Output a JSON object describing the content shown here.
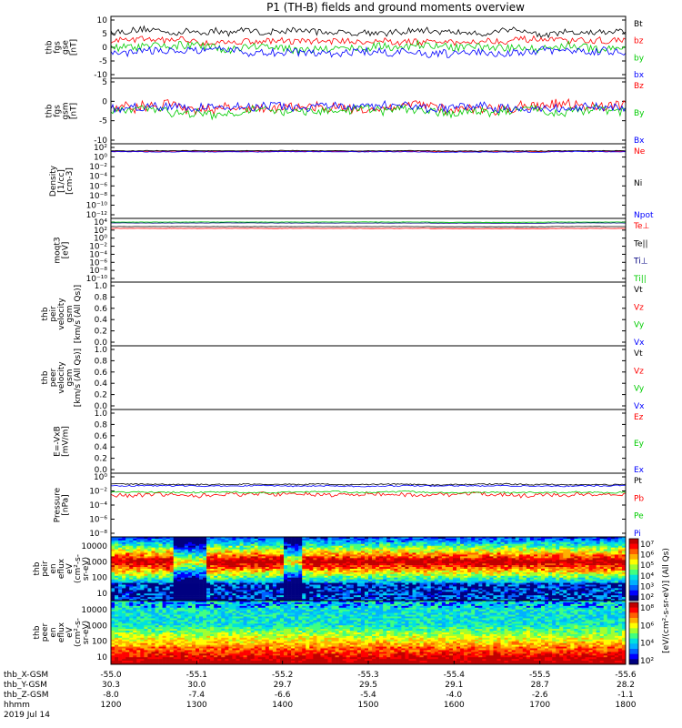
{
  "title": "P1 (TH-B) fields and ground moments overview",
  "date_label": "2019 Jul 14",
  "colors": {
    "black": "#000000",
    "red": "#ff0000",
    "green": "#00cc00",
    "blue": "#0000ff",
    "darkred": "#aa0000",
    "navy": "#000080"
  },
  "chart_data": [
    {
      "type": "line",
      "id": "fgs_gse",
      "ylabel": [
        "thb",
        "fgs",
        "gse",
        "[nT]"
      ],
      "ylim": [
        -10,
        10
      ],
      "yticks": [
        "10",
        "5",
        "0",
        "-5",
        "-10"
      ],
      "log": false,
      "series": [
        {
          "name": "Bt",
          "color": "black",
          "base": 5,
          "noise": 2
        },
        {
          "name": "bz",
          "color": "red",
          "base": 2,
          "noise": 2
        },
        {
          "name": "by",
          "color": "green",
          "base": 0,
          "noise": 2.5
        },
        {
          "name": "bx",
          "color": "blue",
          "base": -1.5,
          "noise": 2.5
        }
      ]
    },
    {
      "type": "line",
      "id": "fgs_gsm",
      "ylabel": [
        "thb",
        "fgs",
        "gsm",
        "[nT]"
      ],
      "ylim": [
        -10,
        10
      ],
      "yticks": [
        "5",
        "0",
        "-5",
        "-10"
      ],
      "log": false,
      "series": [
        {
          "name": "Bz",
          "color": "red",
          "base": 1,
          "noise": 3
        },
        {
          "name": "By",
          "color": "green",
          "base": 0,
          "noise": 2.5
        },
        {
          "name": "Bx",
          "color": "blue",
          "base": 1,
          "noise": 2.5
        }
      ]
    },
    {
      "type": "line",
      "id": "density",
      "ylabel": [
        "Density",
        "[1/cc]",
        "[cm-3]"
      ],
      "ylim": [
        -12,
        2
      ],
      "log": true,
      "yticks": [
        "10²",
        "10⁰",
        "10⁻²",
        "10⁻⁴",
        "10⁻⁶",
        "10⁻⁸",
        "10⁻¹⁰",
        "10⁻¹²"
      ],
      "series": [
        {
          "name": "Ne",
          "color": "red",
          "base": 0.6,
          "noise": 0.1
        },
        {
          "name": "Ni",
          "color": "black",
          "base": 0.7,
          "noise": 0.1
        },
        {
          "name": "Npot",
          "color": "blue",
          "base": 0.5,
          "noise": 0.1
        }
      ]
    },
    {
      "type": "line",
      "id": "temp",
      "ylabel": [
        "moqt3",
        "[eV]"
      ],
      "ylim": [
        -10,
        4
      ],
      "log": true,
      "yticks": [
        "10⁴",
        "10²",
        "10⁰",
        "10⁻²",
        "10⁻⁴",
        "10⁻⁶",
        "10⁻⁸",
        "10⁻¹⁰"
      ],
      "series": [
        {
          "name": "Te⊥",
          "color": "red",
          "base": 1.8,
          "noise": 0.05
        },
        {
          "name": "Te||",
          "color": "black",
          "base": 2.2,
          "noise": 0.05
        },
        {
          "name": "Ti⊥",
          "color": "navy",
          "base": 3.0,
          "noise": 0.05
        },
        {
          "name": "Ti||",
          "color": "green",
          "base": 3.2,
          "noise": 0.05
        }
      ]
    },
    {
      "type": "line",
      "id": "peir_vel",
      "ylabel": [
        "thb",
        "peir",
        "velocity",
        "gsm",
        "[km/s (All Qs)]"
      ],
      "ylim": [
        0,
        1
      ],
      "log": false,
      "yticks": [
        "1.0",
        "0.8",
        "0.6",
        "0.4",
        "0.2",
        "0.0"
      ],
      "series": [
        {
          "name": "Vt",
          "color": "black"
        },
        {
          "name": "Vz",
          "color": "red"
        },
        {
          "name": "Vy",
          "color": "green"
        },
        {
          "name": "Vx",
          "color": "blue"
        }
      ]
    },
    {
      "type": "line",
      "id": "peer_vel",
      "ylabel": [
        "thb",
        "peer",
        "velocity",
        "gsm",
        "[km/s (All Qs)]"
      ],
      "ylim": [
        0,
        1
      ],
      "log": false,
      "yticks": [
        "1.0",
        "0.8",
        "0.6",
        "0.4",
        "0.2",
        "0.0"
      ],
      "series": [
        {
          "name": "Vt",
          "color": "black"
        },
        {
          "name": "Vz",
          "color": "red"
        },
        {
          "name": "Vy",
          "color": "green"
        },
        {
          "name": "Vx",
          "color": "blue"
        }
      ]
    },
    {
      "type": "line",
      "id": "efield",
      "ylabel": [
        "E=-VxB",
        "[mV/m]"
      ],
      "ylim": [
        0,
        1
      ],
      "log": false,
      "yticks": [
        "1.0",
        "0.8",
        "0.6",
        "0.4",
        "0.2",
        "0.0"
      ],
      "series": [
        {
          "name": "Ez",
          "color": "red"
        },
        {
          "name": "Ey",
          "color": "green"
        },
        {
          "name": "Ex",
          "color": "blue"
        }
      ]
    },
    {
      "type": "line",
      "id": "pressure",
      "ylabel": [
        "Pressure",
        "[nPa]"
      ],
      "ylim": [
        -8,
        0
      ],
      "log": true,
      "yticks": [
        "10⁰",
        "10⁻²",
        "10⁻⁴",
        "10⁻⁶",
        "10⁻⁸"
      ],
      "series": [
        {
          "name": "Pt",
          "color": "black",
          "base": -1.4,
          "noise": 0.15
        },
        {
          "name": "Pb",
          "color": "red",
          "base": -2.7,
          "noise": 0.5
        },
        {
          "name": "Pe",
          "color": "green",
          "base": -2.4,
          "noise": 0.2
        },
        {
          "name": "Pi",
          "color": "blue",
          "base": -1.6,
          "noise": 0.15
        }
      ]
    },
    {
      "type": "heatmap",
      "id": "peir_spec",
      "ylabel": [
        "thb",
        "peir",
        "en",
        "eflux",
        "eV",
        "(cm²-s-",
        "sr-eV)"
      ],
      "yticks": [
        "10000",
        "1000",
        "100",
        "10"
      ],
      "peak": 0.7
    },
    {
      "type": "heatmap",
      "id": "peer_spec",
      "ylabel": [
        "thb",
        "peer",
        "en",
        "eflux",
        "eV",
        "(cm²-s-",
        "sr-eV)"
      ],
      "yticks": [
        "10000",
        "1000",
        "100",
        "10"
      ],
      "peak": 0.15
    }
  ],
  "colorbar": {
    "label": "[eV/(cm²-s-sr-eV)] (All Qs)",
    "ticks_top": [
      "10⁷",
      "10⁶",
      "10⁵",
      "10⁴",
      "10³",
      "10²"
    ],
    "ticks_bottom": [
      "10⁸",
      "10⁶",
      "10⁴",
      "10²"
    ]
  },
  "x_axis": {
    "rows": [
      {
        "name": "thb_X-GSM",
        "values": [
          "-55.0",
          "-55.1",
          "-55.2",
          "-55.3",
          "-55.4",
          "-55.5",
          "-55.6"
        ]
      },
      {
        "name": "thb_Y-GSM",
        "values": [
          "30.3",
          "30.0",
          "29.7",
          "29.5",
          "29.1",
          "28.7",
          "28.2"
        ]
      },
      {
        "name": "thb_Z-GSM",
        "values": [
          "-8.0",
          "-7.4",
          "-6.6",
          "-5.4",
          "-4.0",
          "-2.6",
          "-1.1"
        ]
      },
      {
        "name": "hhmm",
        "values": [
          "1200",
          "1300",
          "1400",
          "1500",
          "1600",
          "1700",
          "1800"
        ]
      }
    ]
  }
}
